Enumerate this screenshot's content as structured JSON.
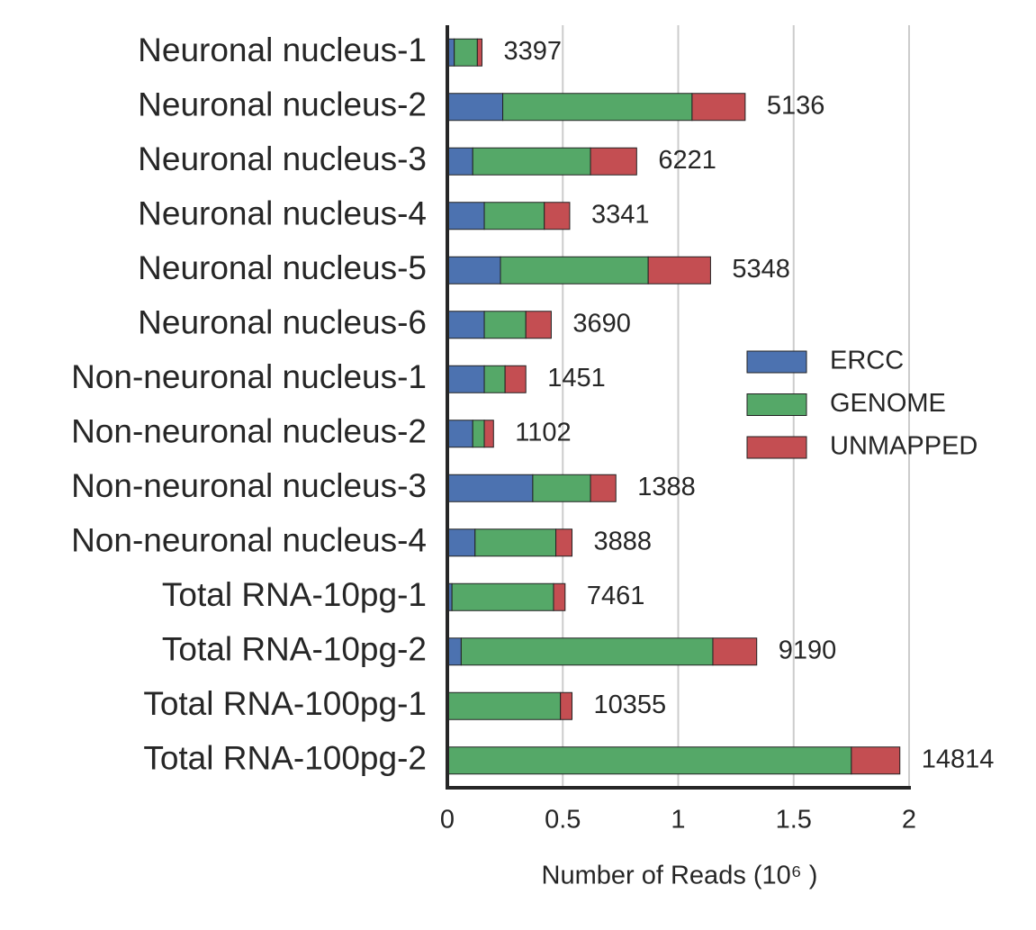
{
  "chart_data": {
    "type": "stacked-barh",
    "categories": [
      "Neuronal nucleus-1",
      "Neuronal nucleus-2",
      "Neuronal nucleus-3",
      "Neuronal nucleus-4",
      "Neuronal nucleus-5",
      "Neuronal nucleus-6",
      "Non-neuronal nucleus-1",
      "Non-neuronal nucleus-2",
      "Non-neuronal nucleus-3",
      "Non-neuronal nucleus-4",
      "Total RNA-10pg-1",
      "Total RNA-10pg-2",
      "Total RNA-100pg-1",
      "Total RNA-100pg-2"
    ],
    "series": [
      {
        "name": "ERCC",
        "color": "#4c72b0",
        "values": [
          0.03,
          0.24,
          0.11,
          0.16,
          0.23,
          0.16,
          0.16,
          0.11,
          0.37,
          0.12,
          0.02,
          0.06,
          0,
          0
        ]
      },
      {
        "name": "GENOME",
        "color": "#55a868",
        "values": [
          0.1,
          0.82,
          0.51,
          0.26,
          0.64,
          0.18,
          0.09,
          0.05,
          0.25,
          0.35,
          0.44,
          1.09,
          0.49,
          1.75
        ]
      },
      {
        "name": "UNMAPPED",
        "color": "#c44e52",
        "values": [
          0.02,
          0.23,
          0.2,
          0.11,
          0.27,
          0.11,
          0.09,
          0.04,
          0.11,
          0.07,
          0.05,
          0.19,
          0.05,
          0.21
        ]
      }
    ],
    "annotations": [
      "3397",
      "5136",
      "6221",
      "3341",
      "5348",
      "3690",
      "1451",
      "1102",
      "1388",
      "3888",
      "7461",
      "9190",
      "10355",
      "14814"
    ],
    "xlabel": "Number of Reads (10⁶ )",
    "xlim": [
      0,
      2
    ],
    "xticks": [
      0,
      0.5,
      1,
      1.5,
      2
    ],
    "grid": true,
    "legend": "right"
  }
}
